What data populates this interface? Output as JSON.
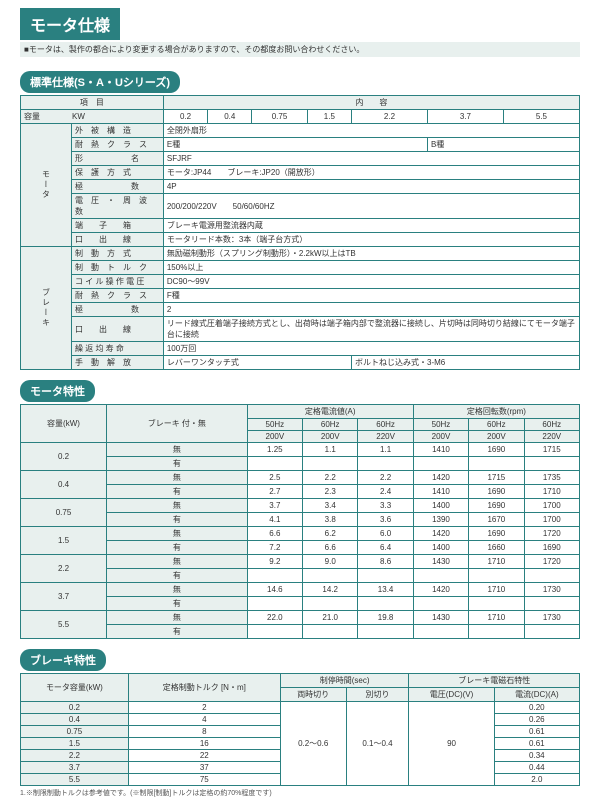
{
  "page": {
    "title": "モータ仕様",
    "note": "■モータは、製作の都合により変更する場合がありますので、その都度お問い合わせください。"
  },
  "sections": {
    "standard": "標準仕様(S・A・Uシリーズ)",
    "motor_char": "モータ特性",
    "brake_char": "ブレーキ特性"
  },
  "std": {
    "hdr_item": "項　目",
    "hdr_content": "内　　容",
    "cap_label": "容量　　　　KW",
    "caps": [
      "0.2",
      "0.4",
      "0.75",
      "1.5",
      "2.2",
      "3.7",
      "5.5"
    ],
    "rows_motor_label": "モータ",
    "rows_brake_label": "ブレーキ",
    "r1_l": "外　被　構　造",
    "r1_v": "全閉外扇形",
    "r2_l": "耐　熱　ク　ラ　ス",
    "r2_v1": "E種",
    "r2_v2": "B種",
    "r3_l": "形　　　　　　名",
    "r3_v": "SFJRF",
    "r4_l": "保　護　方　式",
    "r4_v": "モータ:JP44　　ブレーキ:JP20（開放形）",
    "r5_l": "極　　　　　　数",
    "r5_v": "4P",
    "r6_l": "電　圧　・　周　波　数",
    "r6_v": "200/200/220V　　50/60/60HZ",
    "r7_l": "端　　子　　箱",
    "r7_v": "ブレーキ電源用整流器内蔵",
    "r8_l": "口　　出　　線",
    "r8_v": "モータリード本数：3本（端子台方式）",
    "r9_l": "制　動　方　式",
    "r9_v": "無励磁制動形（スプリング制動形）・2.2kW以上はTB",
    "r10_l": "制　動　ト　ル　ク",
    "r10_v": "150%以上",
    "r11_l": "コ イ ル 操 作 電 圧",
    "r11_v": "DC90〜99V",
    "r12_l": "耐　熱　ク　ラ　ス",
    "r12_v": "F種",
    "r13_l": "極　　　　　　数",
    "r13_v": "2",
    "r14_l": "口　　出　　線",
    "r14_v": "リード線式圧着端子接続方式とし、出荷時は端子箱内部で整流器に接続し、片切時は同時切り結線にてモータ端子台に接続",
    "r15_l": "繰 返 均 寿 命",
    "r15_v": "100万回",
    "r16_l": "手　動　解　放",
    "r16_v1": "レバーワンタッチ式",
    "r16_v2": "ボルトねじ込み式・3-M6"
  },
  "motor": {
    "hdr_cap": "容量(kW)",
    "hdr_brake": "ブレーキ\n付・無",
    "hdr_cur": "定格電流値(A)",
    "hdr_rpm": "定格回転数(rpm)",
    "sub_50": "50Hz",
    "sub_60": "60Hz",
    "sub_200": "200V",
    "sub_220": "220V",
    "with": "有",
    "without": "無",
    "rows": [
      {
        "cap": "0.2",
        "a": [
          "1.25",
          "1.1",
          "1.1",
          "1410",
          "1690",
          "1715"
        ],
        "b": [
          "",
          "",
          "",
          "",
          "",
          ""
        ]
      },
      {
        "cap": "0.4",
        "a": [
          "2.5",
          "2.2",
          "2.2",
          "1420",
          "1715",
          "1735"
        ],
        "b": [
          "2.7",
          "2.3",
          "2.4",
          "1410",
          "1690",
          "1710"
        ]
      },
      {
        "cap": "0.75",
        "a": [
          "3.7",
          "3.4",
          "3.3",
          "1400",
          "1690",
          "1700"
        ],
        "b": [
          "4.1",
          "3.8",
          "3.6",
          "1390",
          "1670",
          "1700"
        ]
      },
      {
        "cap": "1.5",
        "a": [
          "6.6",
          "6.2",
          "6.0",
          "1420",
          "1690",
          "1720"
        ],
        "b": [
          "7.2",
          "6.6",
          "6.4",
          "1400",
          "1660",
          "1690"
        ]
      },
      {
        "cap": "2.2",
        "a": [
          "9.2",
          "9.0",
          "8.6",
          "1430",
          "1710",
          "1720"
        ],
        "b": [
          "",
          "",
          "",
          "",
          "",
          ""
        ]
      },
      {
        "cap": "3.7",
        "a": [
          "14.6",
          "14.2",
          "13.4",
          "1420",
          "1710",
          "1730"
        ],
        "b": [
          "",
          "",
          "",
          "",
          "",
          ""
        ]
      },
      {
        "cap": "5.5",
        "a": [
          "22.0",
          "21.0",
          "19.8",
          "1430",
          "1710",
          "1730"
        ],
        "b": [
          "",
          "",
          "",
          "",
          "",
          ""
        ]
      }
    ]
  },
  "brake": {
    "hdr_cap": "モータ容量(kW)",
    "hdr_torque": "定格制動トルク\n[N・m]",
    "hdr_time": "制停時間(sec)",
    "hdr_time1": "両時切り",
    "hdr_time2": "別切り",
    "hdr_mag": "ブレーキ電磁石特性",
    "hdr_v": "電圧(DC)(V)",
    "hdr_a": "電流(DC)(A)",
    "time1_v": "0.2〜0.6",
    "time2_v": "0.1〜0.4",
    "volt_v": "90",
    "rows": [
      {
        "c": "0.2",
        "t": "2",
        "a": "0.20"
      },
      {
        "c": "0.4",
        "t": "4",
        "a": "0.26"
      },
      {
        "c": "0.75",
        "t": "8",
        "a": "0.61"
      },
      {
        "c": "1.5",
        "t": "16",
        "a": "0.61"
      },
      {
        "c": "2.2",
        "t": "22",
        "a": "0.34"
      },
      {
        "c": "3.7",
        "t": "37",
        "a": "0.44"
      },
      {
        "c": "5.5",
        "t": "75",
        "a": "2.0"
      }
    ],
    "footnote": "1.※制限制動トルクは参考値です。(※制限[制動]トルクは定格の約70%程度です)"
  },
  "colors": {
    "accent": "#2a8080",
    "tint": "#e8f0ee"
  }
}
